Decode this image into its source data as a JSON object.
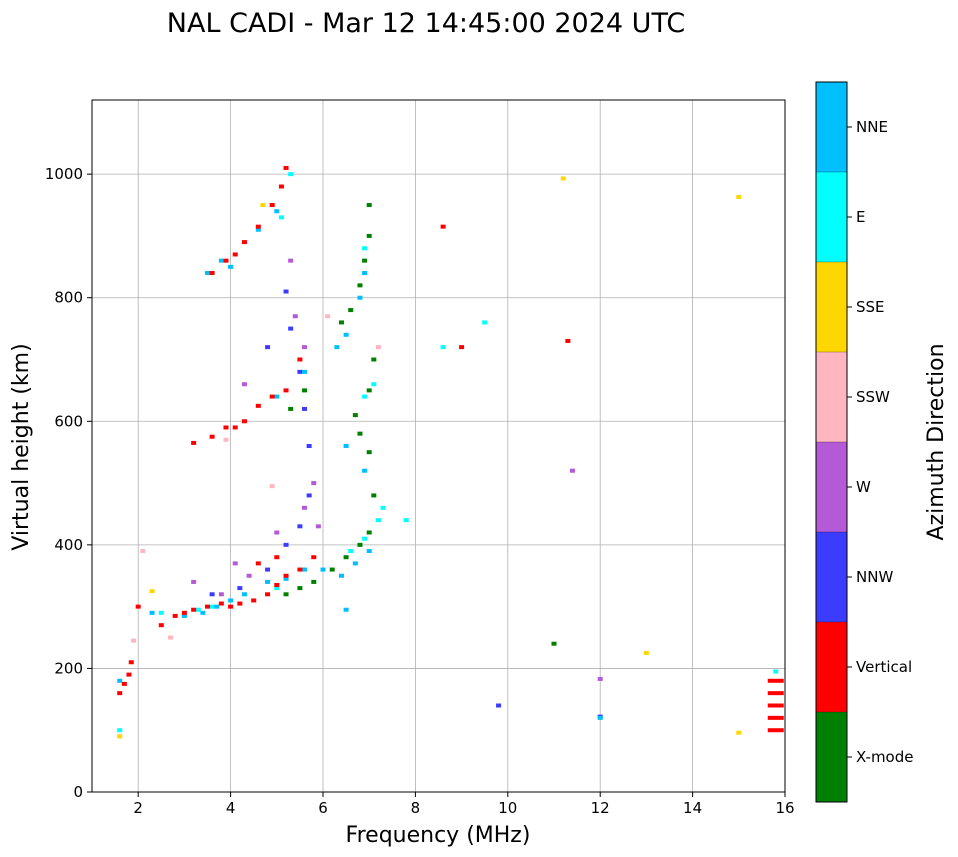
{
  "chart_data": {
    "type": "scatter",
    "title": "NAL CADI - Mar 12 14:45:00 2024 UTC",
    "xlabel": "Frequency (MHz)",
    "ylabel": "Virtual height (km)",
    "xlim": [
      1,
      16
    ],
    "ylim": [
      0,
      1120
    ],
    "xticks": [
      2,
      4,
      6,
      8,
      10,
      12,
      14,
      16
    ],
    "yticks": [
      0,
      200,
      400,
      600,
      800,
      1000
    ],
    "grid": true,
    "colorbar": {
      "title": "Azimuth Direction",
      "categories": [
        "X-mode",
        "Vertical",
        "NNW",
        "W",
        "SSW",
        "SSE",
        "E",
        "NNE"
      ],
      "colors": [
        "#008000",
        "#ff0000",
        "#3c3cff",
        "#b55ad6",
        "#ffb6c1",
        "#ffd700",
        "#00ffff",
        "#00bfff"
      ]
    },
    "series": [
      {
        "name": "Vertical",
        "points": [
          [
            1.6,
            160
          ],
          [
            1.7,
            175
          ],
          [
            1.8,
            190
          ],
          [
            1.85,
            210
          ],
          [
            2.0,
            300
          ],
          [
            2.5,
            270
          ],
          [
            2.8,
            285
          ],
          [
            3.0,
            290
          ],
          [
            3.2,
            295
          ],
          [
            3.5,
            300
          ],
          [
            3.8,
            305
          ],
          [
            4.0,
            300
          ],
          [
            4.2,
            305
          ],
          [
            4.5,
            310
          ],
          [
            4.8,
            320
          ],
          [
            5.0,
            335
          ],
          [
            5.2,
            350
          ],
          [
            5.5,
            360
          ],
          [
            5.8,
            380
          ],
          [
            4.6,
            370
          ],
          [
            5.0,
            380
          ],
          [
            3.2,
            565
          ],
          [
            3.6,
            575
          ],
          [
            3.9,
            590
          ],
          [
            4.1,
            590
          ],
          [
            4.3,
            600
          ],
          [
            4.6,
            625
          ],
          [
            4.9,
            640
          ],
          [
            5.2,
            650
          ],
          [
            5.5,
            700
          ],
          [
            3.6,
            840
          ],
          [
            3.9,
            860
          ],
          [
            4.1,
            870
          ],
          [
            4.3,
            890
          ],
          [
            4.6,
            915
          ],
          [
            4.9,
            950
          ],
          [
            5.1,
            980
          ],
          [
            5.2,
            1010
          ],
          [
            8.6,
            915
          ],
          [
            9.0,
            720
          ],
          [
            11.3,
            730
          ],
          [
            15.8,
            100
          ],
          [
            15.8,
            120
          ],
          [
            15.8,
            140
          ],
          [
            15.8,
            160
          ],
          [
            15.8,
            180
          ]
        ]
      },
      {
        "name": "NNE",
        "points": [
          [
            1.6,
            180
          ],
          [
            2.3,
            290
          ],
          [
            3.0,
            285
          ],
          [
            3.4,
            290
          ],
          [
            3.7,
            300
          ],
          [
            4.0,
            310
          ],
          [
            4.3,
            320
          ],
          [
            4.8,
            340
          ],
          [
            5.2,
            345
          ],
          [
            5.6,
            360
          ],
          [
            6.0,
            360
          ],
          [
            6.4,
            350
          ],
          [
            6.7,
            370
          ],
          [
            7.0,
            390
          ],
          [
            3.5,
            840
          ],
          [
            3.8,
            860
          ],
          [
            4.0,
            850
          ],
          [
            4.6,
            910
          ],
          [
            5.0,
            940
          ],
          [
            6.3,
            720
          ],
          [
            6.5,
            740
          ],
          [
            6.8,
            800
          ],
          [
            6.9,
            840
          ],
          [
            6.5,
            560
          ],
          [
            6.9,
            520
          ],
          [
            5.0,
            640
          ],
          [
            5.6,
            680
          ],
          [
            6.5,
            295
          ],
          [
            12.0,
            120
          ]
        ]
      },
      {
        "name": "X-mode",
        "points": [
          [
            5.2,
            320
          ],
          [
            5.5,
            330
          ],
          [
            5.8,
            340
          ],
          [
            6.2,
            360
          ],
          [
            6.5,
            380
          ],
          [
            6.8,
            400
          ],
          [
            7.0,
            420
          ],
          [
            7.1,
            480
          ],
          [
            7.0,
            550
          ],
          [
            6.8,
            580
          ],
          [
            6.7,
            610
          ],
          [
            7.0,
            650
          ],
          [
            7.1,
            700
          ],
          [
            6.4,
            760
          ],
          [
            6.6,
            780
          ],
          [
            6.8,
            820
          ],
          [
            6.9,
            860
          ],
          [
            7.0,
            900
          ],
          [
            7.0,
            950
          ],
          [
            5.6,
            650
          ],
          [
            5.3,
            620
          ],
          [
            11.0,
            240
          ]
        ]
      },
      {
        "name": "E",
        "points": [
          [
            1.6,
            100
          ],
          [
            2.5,
            290
          ],
          [
            3.3,
            295
          ],
          [
            3.6,
            300
          ],
          [
            5.0,
            330
          ],
          [
            6.6,
            390
          ],
          [
            6.9,
            410
          ],
          [
            7.2,
            440
          ],
          [
            7.3,
            460
          ],
          [
            7.8,
            440
          ],
          [
            6.9,
            640
          ],
          [
            7.1,
            660
          ],
          [
            6.9,
            880
          ],
          [
            8.6,
            720
          ],
          [
            9.5,
            760
          ],
          [
            15.8,
            195
          ],
          [
            5.1,
            930
          ],
          [
            5.3,
            1000
          ]
        ]
      },
      {
        "name": "NNW",
        "points": [
          [
            3.6,
            320
          ],
          [
            4.2,
            330
          ],
          [
            4.8,
            360
          ],
          [
            5.2,
            400
          ],
          [
            5.5,
            430
          ],
          [
            5.7,
            480
          ],
          [
            5.7,
            560
          ],
          [
            5.6,
            620
          ],
          [
            5.5,
            680
          ],
          [
            5.3,
            750
          ],
          [
            5.2,
            810
          ],
          [
            4.8,
            720
          ],
          [
            9.8,
            140
          ],
          [
            12.0,
            122
          ]
        ]
      },
      {
        "name": "W",
        "points": [
          [
            3.2,
            340
          ],
          [
            3.8,
            320
          ],
          [
            4.4,
            350
          ],
          [
            5.0,
            420
          ],
          [
            5.6,
            460
          ],
          [
            5.8,
            500
          ],
          [
            5.9,
            430
          ],
          [
            5.4,
            770
          ],
          [
            5.6,
            720
          ],
          [
            4.3,
            660
          ],
          [
            5.3,
            860
          ],
          [
            11.4,
            520
          ],
          [
            12.0,
            183
          ],
          [
            4.1,
            370
          ]
        ]
      },
      {
        "name": "SSW",
        "points": [
          [
            1.9,
            245
          ],
          [
            2.1,
            390
          ],
          [
            4.9,
            495
          ],
          [
            6.1,
            770
          ],
          [
            7.2,
            720
          ],
          [
            3.9,
            570
          ],
          [
            2.7,
            250
          ]
        ]
      },
      {
        "name": "SSE",
        "points": [
          [
            1.6,
            90
          ],
          [
            2.3,
            325
          ],
          [
            4.7,
            950
          ],
          [
            11.2,
            993
          ],
          [
            15.0,
            963
          ],
          [
            15.0,
            96
          ],
          [
            13.0,
            225
          ]
        ]
      }
    ]
  }
}
